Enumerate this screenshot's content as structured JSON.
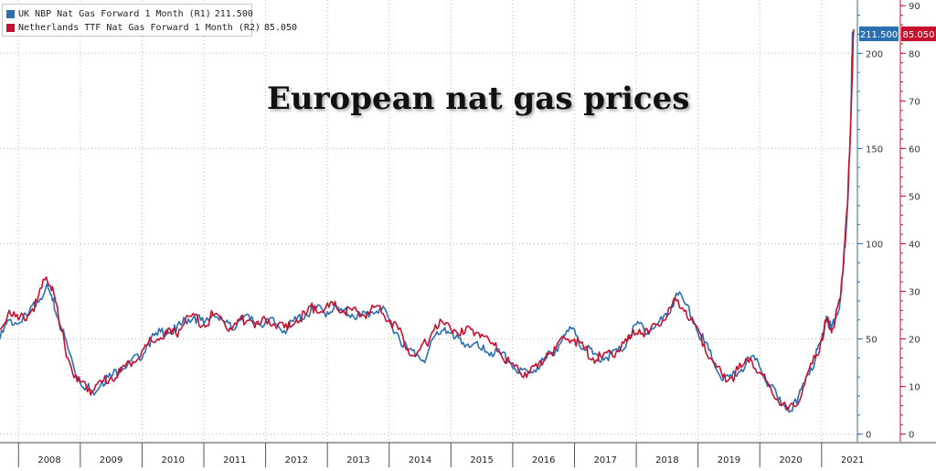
{
  "colors": {
    "nbp": "#2a6fb0",
    "ttf": "#c8102e",
    "grid": "#b8b8b8",
    "axis_r1": "#2a6fb0",
    "axis_r2": "#c8102e"
  },
  "legend": {
    "items": [
      {
        "label": "UK NBP Nat Gas Forward 1 Month (R1)",
        "value": "211.500",
        "color": "#2a6fb0"
      },
      {
        "label": "Netherlands TTF Nat Gas Forward 1 Month (R2)",
        "value": "85.050",
        "color": "#c8102e"
      }
    ]
  },
  "chart_data": {
    "type": "line",
    "title": "European nat gas prices",
    "grid": true,
    "legend_position": "top-left",
    "x_labels": [
      "2008",
      "2009",
      "2010",
      "2011",
      "2012",
      "2013",
      "2014",
      "2015",
      "2016",
      "2017",
      "2018",
      "2019",
      "2020",
      "2021"
    ],
    "x_range": [
      2007.7,
      2021.55
    ],
    "y_axes": [
      {
        "id": "R1",
        "side": "right",
        "ticks": [
          0,
          50,
          100,
          150,
          200
        ],
        "range": [
          -4,
          228
        ],
        "color": "#2a6fb0"
      },
      {
        "id": "R2",
        "side": "right",
        "ticks": [
          0,
          10,
          20,
          30,
          40,
          50,
          60,
          70,
          80,
          90
        ],
        "range": [
          -1.6,
          91.2
        ],
        "color": "#c8102e"
      }
    ],
    "last_values": {
      "R1": "211.500",
      "R2": "85.050"
    },
    "series": [
      {
        "name": "UK NBP Nat Gas Forward 1 Month (R1)",
        "axis": "R1",
        "color": "#2a6fb0",
        "x": [
          2007.7,
          2007.85,
          2008.0,
          2008.15,
          2008.3,
          2008.45,
          2008.55,
          2008.65,
          2008.8,
          2008.95,
          2009.1,
          2009.2,
          2009.35,
          2009.5,
          2009.65,
          2009.8,
          2009.95,
          2010.1,
          2010.25,
          2010.4,
          2010.55,
          2010.7,
          2010.85,
          2011.0,
          2011.15,
          2011.3,
          2011.45,
          2011.6,
          2011.75,
          2011.9,
          2012.05,
          2012.2,
          2012.35,
          2012.5,
          2012.65,
          2012.8,
          2012.95,
          2013.1,
          2013.25,
          2013.4,
          2013.55,
          2013.7,
          2013.85,
          2014.0,
          2014.15,
          2014.3,
          2014.45,
          2014.6,
          2014.75,
          2014.9,
          2015.05,
          2015.2,
          2015.35,
          2015.5,
          2015.65,
          2015.8,
          2015.95,
          2016.1,
          2016.25,
          2016.4,
          2016.55,
          2016.7,
          2016.85,
          2017.0,
          2017.15,
          2017.3,
          2017.45,
          2017.6,
          2017.75,
          2017.9,
          2018.05,
          2018.2,
          2018.35,
          2018.5,
          2018.65,
          2018.8,
          2018.95,
          2019.1,
          2019.25,
          2019.4,
          2019.55,
          2019.7,
          2019.85,
          2020.0,
          2020.15,
          2020.3,
          2020.45,
          2020.6,
          2020.75,
          2020.9,
          2021.0,
          2021.08,
          2021.15,
          2021.22,
          2021.3,
          2021.36,
          2021.42,
          2021.47,
          2021.5
        ],
        "values": [
          50,
          60,
          58,
          62,
          70,
          78,
          70,
          60,
          45,
          30,
          25,
          22,
          28,
          30,
          35,
          38,
          40,
          48,
          52,
          55,
          54,
          60,
          62,
          58,
          63,
          60,
          55,
          62,
          60,
          58,
          60,
          57,
          55,
          60,
          63,
          66,
          64,
          66,
          64,
          63,
          62,
          64,
          66,
          60,
          52,
          44,
          42,
          40,
          52,
          56,
          50,
          48,
          47,
          44,
          43,
          42,
          38,
          32,
          33,
          35,
          40,
          45,
          52,
          55,
          45,
          42,
          40,
          42,
          44,
          52,
          58,
          54,
          58,
          62,
          74,
          68,
          58,
          48,
          38,
          28,
          30,
          34,
          40,
          35,
          26,
          18,
          14,
          16,
          30,
          40,
          50,
          62,
          55,
          60,
          70,
          90,
          120,
          160,
          211.5
        ]
      },
      {
        "name": "Netherlands TTF Nat Gas Forward 1 Month (R2)",
        "axis": "R2",
        "color": "#c8102e",
        "x": [
          2007.7,
          2007.85,
          2008.0,
          2008.15,
          2008.3,
          2008.45,
          2008.55,
          2008.65,
          2008.8,
          2008.95,
          2009.1,
          2009.2,
          2009.35,
          2009.5,
          2009.65,
          2009.8,
          2009.95,
          2010.1,
          2010.25,
          2010.4,
          2010.55,
          2010.7,
          2010.85,
          2011.0,
          2011.15,
          2011.3,
          2011.45,
          2011.6,
          2011.75,
          2011.9,
          2012.05,
          2012.2,
          2012.35,
          2012.5,
          2012.65,
          2012.8,
          2012.95,
          2013.1,
          2013.25,
          2013.4,
          2013.55,
          2013.7,
          2013.85,
          2014.0,
          2014.15,
          2014.3,
          2014.45,
          2014.6,
          2014.75,
          2014.9,
          2015.05,
          2015.2,
          2015.35,
          2015.5,
          2015.65,
          2015.8,
          2015.95,
          2016.1,
          2016.25,
          2016.4,
          2016.55,
          2016.7,
          2016.85,
          2017.0,
          2017.15,
          2017.3,
          2017.45,
          2017.6,
          2017.75,
          2017.9,
          2018.05,
          2018.2,
          2018.35,
          2018.5,
          2018.65,
          2018.8,
          2018.95,
          2019.1,
          2019.25,
          2019.4,
          2019.55,
          2019.7,
          2019.85,
          2020.0,
          2020.15,
          2020.3,
          2020.45,
          2020.6,
          2020.75,
          2020.9,
          2021.0,
          2021.08,
          2021.15,
          2021.22,
          2021.3,
          2021.36,
          2021.42,
          2021.47,
          2021.52
        ],
        "values": [
          22,
          26,
          24,
          25,
          28,
          33,
          31,
          24,
          16,
          11,
          10,
          9,
          11,
          12,
          13,
          15,
          16,
          19,
          20,
          21,
          21,
          24,
          25,
          23,
          25,
          24,
          22,
          24,
          24,
          23,
          24,
          23,
          22,
          24,
          25,
          27,
          26,
          27,
          26,
          26,
          25,
          26,
          27,
          24,
          22,
          18,
          17,
          19,
          23,
          23,
          22,
          21,
          22,
          21,
          19,
          17,
          15,
          13,
          13,
          14,
          17,
          18,
          20,
          20,
          18,
          16,
          16,
          17,
          18,
          20,
          22,
          21,
          23,
          25,
          28,
          26,
          23,
          19,
          15,
          12,
          12,
          14,
          16,
          13,
          10,
          7,
          5,
          6,
          12,
          16,
          20,
          24,
          22,
          24,
          28,
          38,
          48,
          65,
          85.05
        ]
      }
    ]
  }
}
